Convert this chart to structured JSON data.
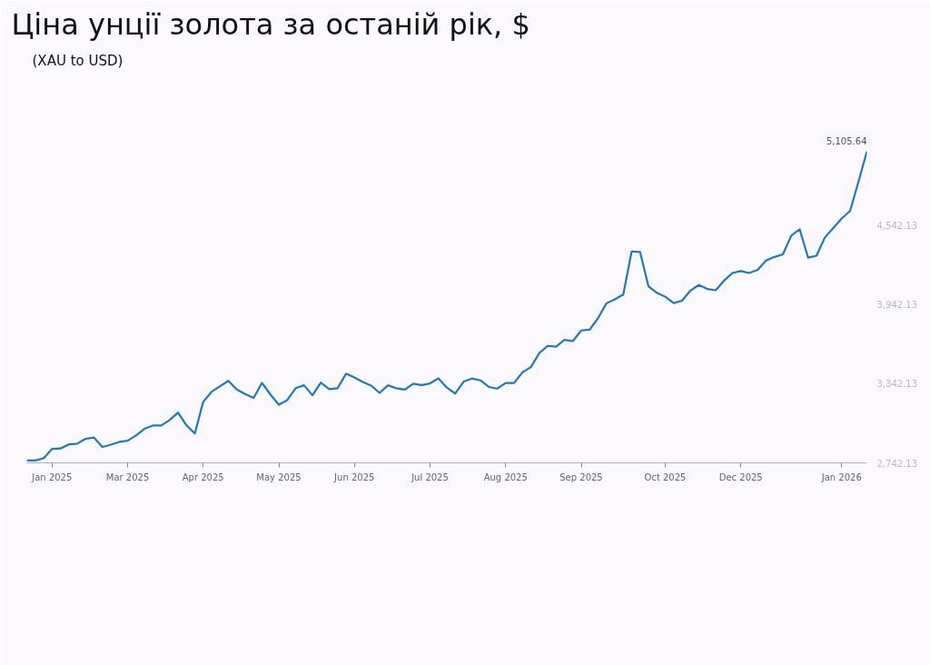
{
  "chart_data": {
    "type": "line",
    "title": "Ціна унції золота за останій рік, $",
    "subtitle": "(XAU to USD)",
    "categories": [
      null,
      null,
      null,
      "Jan 2025",
      null,
      null,
      null,
      null,
      null,
      null,
      null,
      null,
      "Mar 2025",
      null,
      null,
      null,
      null,
      null,
      null,
      null,
      null,
      "Apr 2025",
      null,
      null,
      null,
      null,
      null,
      null,
      null,
      null,
      "May 2025",
      null,
      null,
      null,
      null,
      null,
      null,
      null,
      null,
      "Jun 2025",
      null,
      null,
      null,
      null,
      null,
      null,
      null,
      null,
      "Jul 2025",
      null,
      null,
      null,
      null,
      null,
      null,
      null,
      null,
      "Aug 2025",
      null,
      null,
      null,
      null,
      null,
      null,
      null,
      null,
      "Sep 2025",
      null,
      null,
      null,
      null,
      null,
      null,
      null,
      null,
      null,
      "Oct 2025",
      null,
      null,
      null,
      null,
      null,
      null,
      null,
      null,
      "Dec 2025",
      null,
      null,
      null,
      null,
      null,
      null,
      null,
      null,
      null,
      null,
      null,
      "Jan 2026",
      null,
      null,
      null
    ],
    "series": [
      {
        "color": "#1f77c9",
        "values": [
          2760,
          2760,
          2777,
          2848,
          2851,
          2882,
          2888,
          2925,
          2934,
          2863,
          2880,
          2901,
          2910,
          2950,
          3000,
          3025,
          3026,
          3067,
          3124,
          3028,
          2964,
          3205,
          3282,
          3324,
          3364,
          3299,
          3265,
          3235,
          3349,
          3261,
          3183,
          3218,
          3309,
          3331,
          3255,
          3352,
          3302,
          3309,
          3419,
          3390,
          3356,
          3328,
          3273,
          3331,
          3308,
          3298,
          3343,
          3333,
          3345,
          3383,
          3313,
          3268,
          3359,
          3382,
          3368,
          3318,
          3306,
          3348,
          3348,
          3429,
          3469,
          3575,
          3630,
          3624,
          3676,
          3666,
          3747,
          3753,
          3840,
          3953,
          3983,
          4019,
          4347,
          4343,
          4082,
          4033,
          4003,
          3955,
          3973,
          4050,
          4092,
          4062,
          4052,
          4125,
          4183,
          4198,
          4183,
          4207,
          4278,
          4305,
          4325,
          4467,
          4515,
          4300,
          4314,
          4453,
          4525,
          4597,
          4654,
          4876,
          5105.64
        ]
      }
    ],
    "ylim": [
      2742.13,
      5700
    ],
    "yticks": [
      {
        "value": 2742.13,
        "label": "2,742.13"
      },
      {
        "value": 3342.13,
        "label": "3,342.13"
      },
      {
        "value": 3942.13,
        "label": "3,942.13"
      },
      {
        "value": 4542.13,
        "label": "4,542.13"
      }
    ],
    "annotations": [
      "5,105.64"
    ]
  }
}
